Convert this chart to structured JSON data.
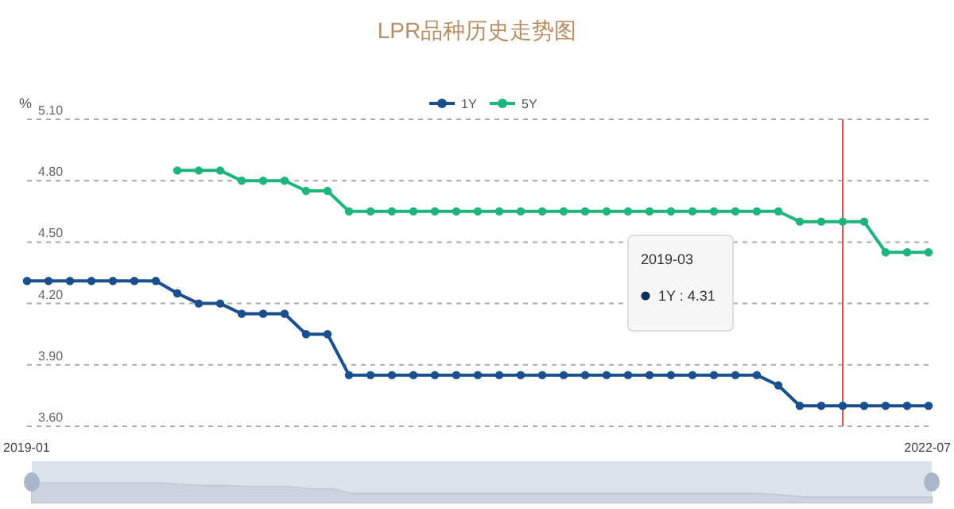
{
  "chart_data": {
    "type": "line",
    "title": "LPR品种历史走势图",
    "ylabel": "%",
    "x": [
      "2019-01",
      "2019-02",
      "2019-03",
      "2019-04",
      "2019-05",
      "2019-06",
      "2019-07",
      "2019-08",
      "2019-09",
      "2019-10",
      "2019-11",
      "2019-12",
      "2020-01",
      "2020-02",
      "2020-03",
      "2020-04",
      "2020-05",
      "2020-06",
      "2020-07",
      "2020-08",
      "2020-09",
      "2020-10",
      "2020-11",
      "2020-12",
      "2021-01",
      "2021-02",
      "2021-03",
      "2021-04",
      "2021-05",
      "2021-06",
      "2021-07",
      "2021-08",
      "2021-09",
      "2021-10",
      "2021-11",
      "2021-12",
      "2022-01",
      "2022-02",
      "2022-03",
      "2022-04",
      "2022-05",
      "2022-06",
      "2022-07"
    ],
    "series": [
      {
        "name": "1Y",
        "color": "#1a4f8f",
        "values": [
          4.31,
          4.31,
          4.31,
          4.31,
          4.31,
          4.31,
          4.31,
          4.25,
          4.2,
          4.2,
          4.15,
          4.15,
          4.15,
          4.05,
          4.05,
          3.85,
          3.85,
          3.85,
          3.85,
          3.85,
          3.85,
          3.85,
          3.85,
          3.85,
          3.85,
          3.85,
          3.85,
          3.85,
          3.85,
          3.85,
          3.85,
          3.85,
          3.85,
          3.85,
          3.85,
          3.8,
          3.7,
          3.7,
          3.7,
          3.7,
          3.7,
          3.7,
          3.7
        ]
      },
      {
        "name": "5Y",
        "color": "#1db57b",
        "values": [
          null,
          null,
          null,
          null,
          null,
          null,
          null,
          4.85,
          4.85,
          4.85,
          4.8,
          4.8,
          4.8,
          4.75,
          4.75,
          4.65,
          4.65,
          4.65,
          4.65,
          4.65,
          4.65,
          4.65,
          4.65,
          4.65,
          4.65,
          4.65,
          4.65,
          4.65,
          4.65,
          4.65,
          4.65,
          4.65,
          4.65,
          4.65,
          4.65,
          4.65,
          4.6,
          4.6,
          4.6,
          4.6,
          4.45,
          4.45,
          4.45
        ]
      }
    ],
    "xlim": [
      "2019-01",
      "2022-07"
    ],
    "xticks": [
      {
        "value": "2019-01",
        "label": "2019-01"
      },
      {
        "value": "2022-07",
        "label": "2022-07"
      }
    ],
    "ylim": [
      3.6,
      5.1
    ],
    "yticks": [
      {
        "value": 3.6,
        "label": "3.60"
      },
      {
        "value": 3.9,
        "label": "3.90"
      },
      {
        "value": 4.2,
        "label": "4.20"
      },
      {
        "value": 4.5,
        "label": "4.50"
      },
      {
        "value": 4.8,
        "label": "4.80"
      },
      {
        "value": 5.1,
        "label": "5.10"
      }
    ],
    "grid": "y",
    "legend": "top",
    "marker": "circle",
    "line_style": "solid",
    "ref_lines": [
      {
        "axis": "x",
        "value": "2022-03",
        "color": "#f0464b"
      }
    ],
    "annotations": [
      "2019-03",
      "1Y  : 4.31"
    ]
  }
}
